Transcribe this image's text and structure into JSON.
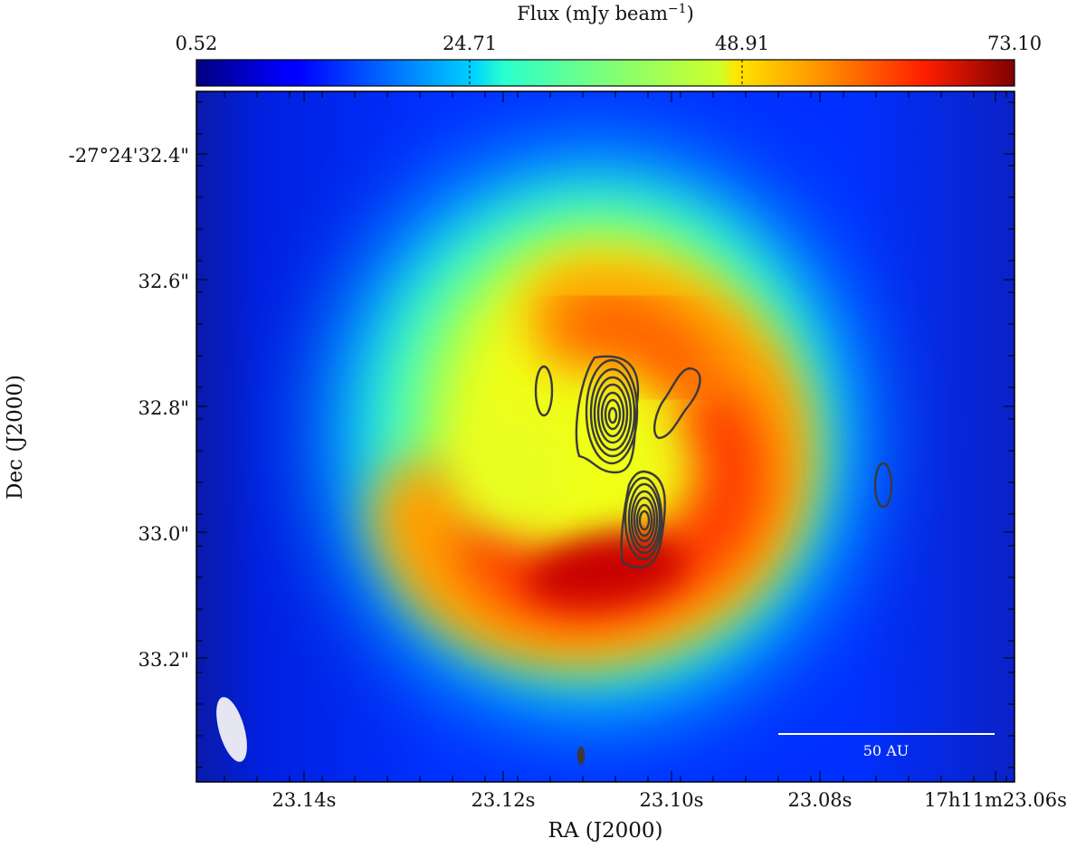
{
  "colorbar": {
    "title": "Flux (mJy beam",
    "title_exponent": "−1",
    "title_close": ")",
    "ticks": [
      "0.52",
      "24.71",
      "48.91",
      "73.10"
    ],
    "range": [
      0.52,
      73.1
    ],
    "colormap": "jet"
  },
  "axes": {
    "xlabel": "RA (J2000)",
    "ylabel": "Dec (J2000)",
    "xticks": [
      "23.14s",
      "23.12s",
      "23.10s",
      "23.08s",
      "17h11m23.06s"
    ],
    "yticks": [
      "-27°24'32.4\"",
      "32.6\"",
      "32.8\"",
      "33.0\"",
      "33.2\""
    ]
  },
  "scale_bar": {
    "label": "50 AU"
  },
  "colors": {
    "contour": "#3a3a3a",
    "beam": "#e6e6f2",
    "scale_bar": "#ffffff",
    "background_map": "#0a2cff"
  }
}
